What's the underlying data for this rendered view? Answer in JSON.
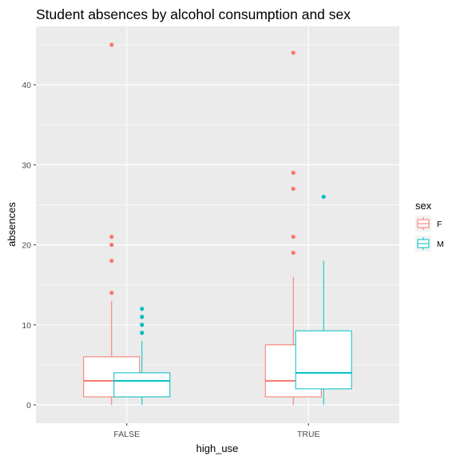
{
  "chart_data": {
    "type": "boxplot",
    "title": "Student absences by alcohol consumption and sex",
    "xlabel": "high_use",
    "ylabel": "absences",
    "categories": [
      "FALSE",
      "TRUE"
    ],
    "ylim": [
      -2.3,
      47.3
    ],
    "yticks": [
      0,
      10,
      20,
      30,
      40
    ],
    "grid": true,
    "legend": {
      "title": "sex",
      "position": "right",
      "entries": [
        "F",
        "M"
      ]
    },
    "colors": {
      "F": "#F8766D",
      "M": "#00BFC4",
      "panel": "#EBEBEB",
      "grid": "#FFFFFF"
    },
    "series": [
      {
        "name": "F",
        "boxes": [
          {
            "category": "FALSE",
            "whisker_low": 0,
            "q1": 1,
            "median": 3,
            "q3": 6,
            "whisker_high": 13,
            "outliers": [
              14,
              18,
              20,
              21,
              45
            ]
          },
          {
            "category": "TRUE",
            "whisker_low": 0,
            "q1": 1,
            "median": 3,
            "q3": 7.5,
            "whisker_high": 16,
            "outliers": [
              19,
              21,
              27,
              29,
              44
            ]
          }
        ]
      },
      {
        "name": "M",
        "boxes": [
          {
            "category": "FALSE",
            "whisker_low": 0,
            "q1": 1,
            "median": 3,
            "q3": 4,
            "whisker_high": 8,
            "outliers": [
              9,
              10,
              11,
              12
            ]
          },
          {
            "category": "TRUE",
            "whisker_low": 0,
            "q1": 2,
            "median": 4,
            "q3": 9.25,
            "whisker_high": 18,
            "outliers": [
              26
            ]
          }
        ]
      }
    ]
  }
}
